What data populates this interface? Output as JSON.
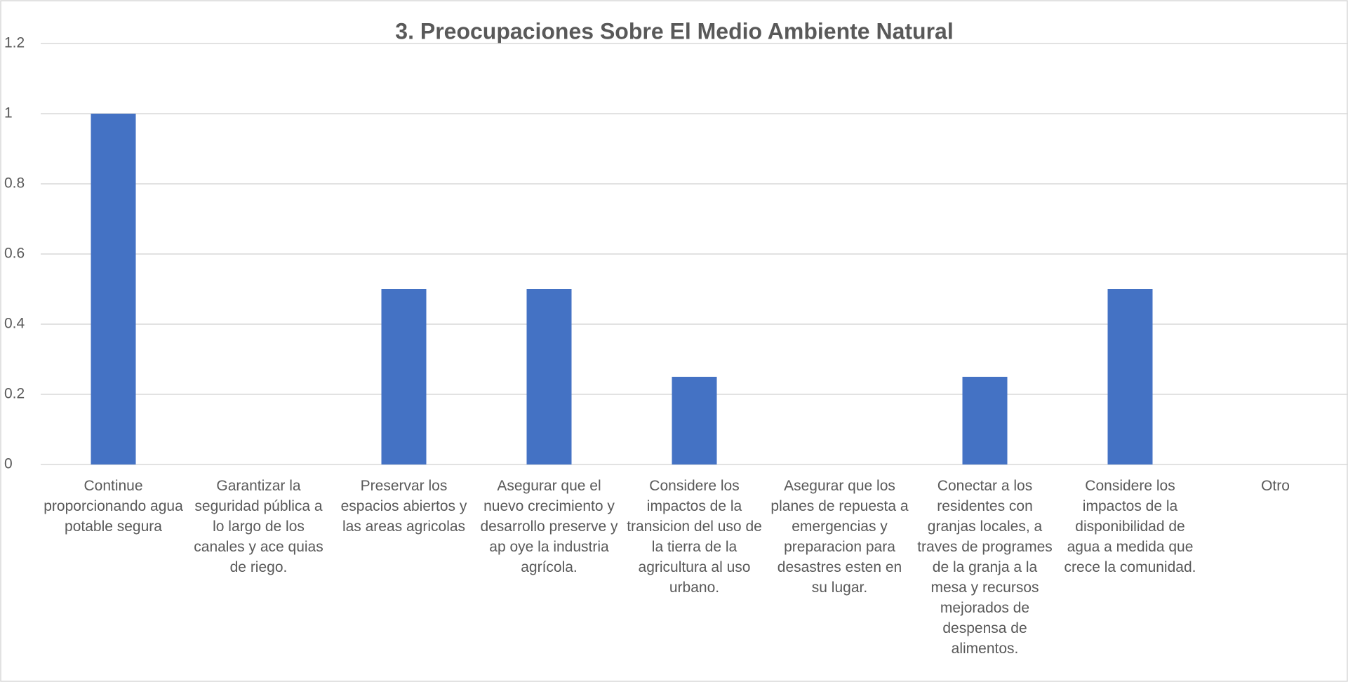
{
  "chart_data": {
    "type": "bar",
    "title": "3. Preocupaciones Sobre El Medio Ambiente Natural",
    "categories": [
      "Continue proporcionando agua potable segura",
      "Garantizar la seguridad pública a lo largo de los canales y ace quias de riego.",
      "Preservar los espacios abiertos y las areas agricolas",
      "Asegurar que el nuevo crecimiento y desarrollo preserve y ap oye la industria agrícola.",
      "Considere los impactos de la transicion del uso de la tierra de la agricultura al uso urbano.",
      "Asegurar que los planes de repuesta a emergencias y preparacion para desastres esten en su lugar.",
      "Conectar a los residentes con granjas locales, a traves de programes de la granja a la mesa y recursos mejorados de despensa de alimentos.",
      "Considere los impactos de la disponibilidad de agua a medida que crece la comunidad.",
      "Otro"
    ],
    "values": [
      1,
      0,
      0.5,
      0.5,
      0.25,
      0,
      0.25,
      0.5,
      0
    ],
    "color": "#4472c4",
    "ylim": [
      0,
      1.2
    ],
    "yticks": [
      0,
      0.2,
      0.4,
      0.6,
      0.8,
      1,
      1.2
    ],
    "grid": true
  }
}
